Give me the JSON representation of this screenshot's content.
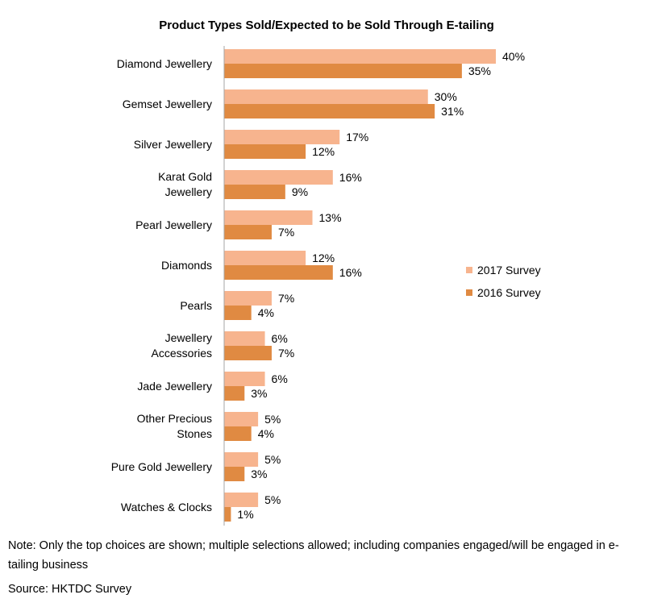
{
  "chart_data": {
    "type": "bar",
    "orientation": "horizontal",
    "title": "Product Types Sold/Expected to be Sold Through E-tailing",
    "categories": [
      [
        "Diamond Jewellery"
      ],
      [
        "Gemset Jewellery"
      ],
      [
        "Silver Jewellery"
      ],
      [
        "Karat Gold",
        "Jewellery"
      ],
      [
        "Pearl Jewellery"
      ],
      [
        "Diamonds"
      ],
      [
        "Pearls"
      ],
      [
        "Jewellery",
        "Accessories"
      ],
      [
        "Jade Jewellery"
      ],
      [
        "Other Precious",
        "Stones"
      ],
      [
        "Pure Gold Jewellery"
      ],
      [
        "Watches & Clocks"
      ]
    ],
    "series": [
      {
        "name": "2017 Survey",
        "color": "#f7b48e",
        "values": [
          40,
          30,
          17,
          16,
          13,
          12,
          7,
          6,
          6,
          5,
          5,
          5
        ]
      },
      {
        "name": "2016 Survey",
        "color": "#e08a42",
        "values": [
          35,
          31,
          12,
          9,
          7,
          16,
          4,
          7,
          3,
          4,
          3,
          1
        ]
      }
    ],
    "value_suffix": "%",
    "xlim": [
      0,
      40
    ],
    "grid": false,
    "legend_position": "right"
  },
  "note": "Note: Only the top choices are shown; multiple selections allowed; including companies engaged/will be engaged in e-tailing business",
  "source": "Source: HKTDC Survey"
}
